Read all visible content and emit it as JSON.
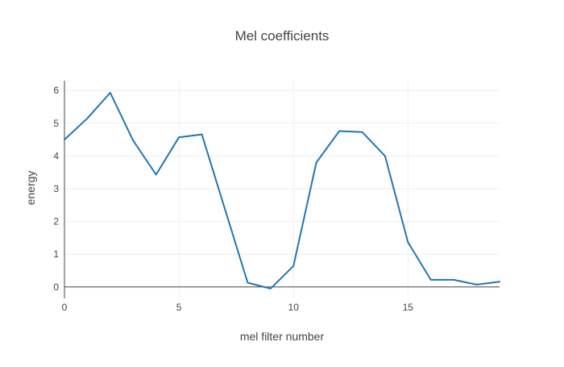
{
  "chart_data": {
    "type": "line",
    "title": "Mel coefficients",
    "xlabel": "mel filter number",
    "ylabel": "energy",
    "xlim": [
      0,
      19
    ],
    "ylim": [
      -0.35,
      6.3
    ],
    "x_ticks": [
      0,
      5,
      10,
      15
    ],
    "y_ticks": [
      0,
      1,
      2,
      3,
      4,
      5,
      6
    ],
    "grid": true,
    "series": [
      {
        "color": "#1f77b4",
        "x": [
          0,
          1,
          2,
          3,
          4,
          5,
          6,
          7,
          8,
          9,
          10,
          11,
          12,
          13,
          14,
          15,
          16,
          17,
          18,
          19
        ],
        "values": [
          4.5,
          5.15,
          5.93,
          4.47,
          3.43,
          4.57,
          4.66,
          2.4,
          0.13,
          -0.05,
          0.64,
          3.8,
          4.76,
          4.73,
          4.0,
          1.37,
          0.22,
          0.22,
          0.07,
          0.16
        ]
      }
    ]
  }
}
